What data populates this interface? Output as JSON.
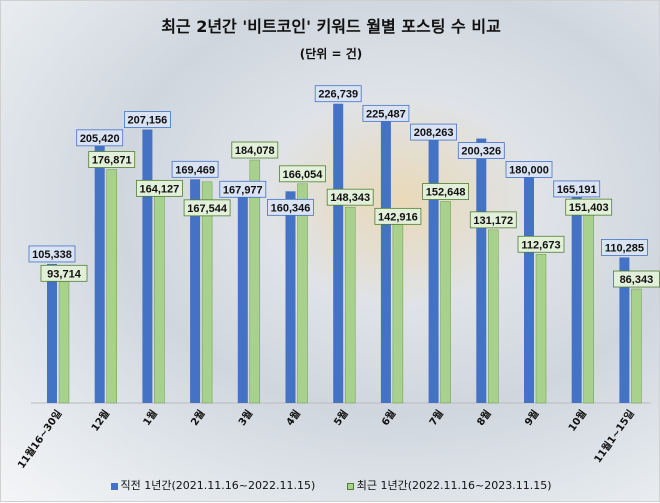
{
  "chart_data": {
    "type": "bar",
    "title": "최근 2년간 '비트코인' 키워드 월별 포스팅 수 비교",
    "subtitle": "(단위 = 건)",
    "xlabel": "",
    "ylabel": "",
    "ylim": [
      0,
      250000
    ],
    "grid": false,
    "legend": "bottom",
    "categories": [
      "11월16~30일",
      "12월",
      "1월",
      "2월",
      "3월",
      "4월",
      "5월",
      "6월",
      "7월",
      "8월",
      "9월",
      "10월",
      "11월1~15일"
    ],
    "series": [
      {
        "name": "직전 1년간(2021.11.16~2022.11.15)",
        "color": "#4472c4",
        "values": [
          105338,
          205420,
          207156,
          169469,
          167977,
          160346,
          226739,
          225487,
          208263,
          200326,
          180000,
          165191,
          110285
        ]
      },
      {
        "name": "최근 1년간(2022.11.16~2023.11.15)",
        "color": "#a9d18e",
        "values": [
          93714,
          176871,
          164127,
          167544,
          184078,
          166054,
          148343,
          142916,
          152648,
          131172,
          112673,
          151403,
          86343
        ]
      }
    ]
  }
}
